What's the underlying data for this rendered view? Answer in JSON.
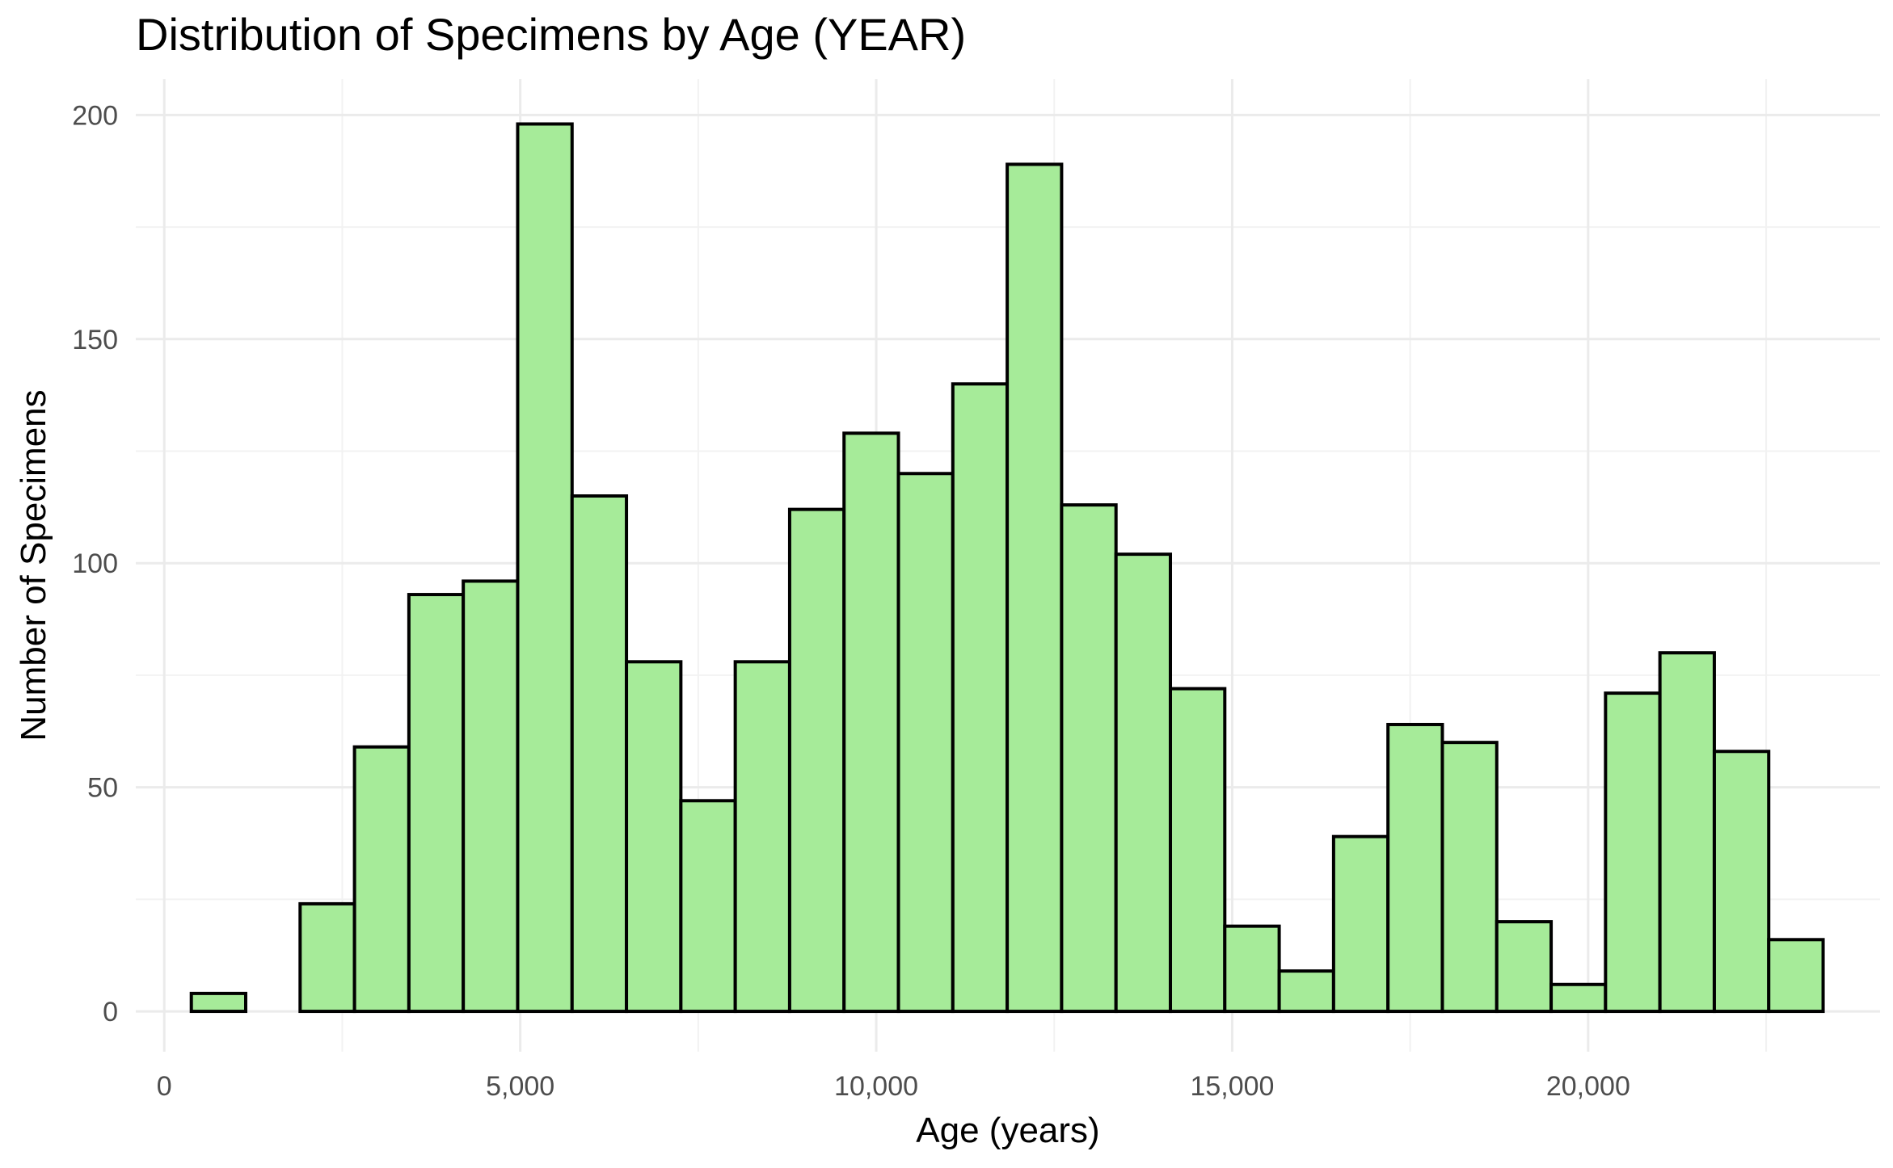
{
  "chart_data": {
    "type": "bar",
    "subtype": "histogram",
    "title": "Distribution of Specimens by Age (YEAR)",
    "xlabel": "Age (years)",
    "ylabel": "Number of Specimens",
    "xlim": [
      -400,
      24100
    ],
    "ylim": [
      -9,
      208
    ],
    "xticks": [
      0,
      5000,
      10000,
      15000,
      20000
    ],
    "xtick_labels": [
      "0",
      "5,000",
      "10,000",
      "15,000",
      "20,000"
    ],
    "yticks": [
      0,
      50,
      100,
      150,
      200
    ],
    "ytick_labels": [
      "0",
      "50",
      "100",
      "150",
      "200"
    ],
    "grid": true,
    "legend": "none",
    "fill_color": "#a6eb99",
    "edge_color": "#000000",
    "bin_start": 380,
    "bin_width": 764,
    "values": [
      4,
      0,
      24,
      59,
      93,
      96,
      198,
      115,
      78,
      47,
      78,
      112,
      129,
      120,
      140,
      189,
      113,
      102,
      72,
      19,
      9,
      39,
      64,
      60,
      20,
      6,
      71,
      80,
      58,
      16
    ]
  }
}
